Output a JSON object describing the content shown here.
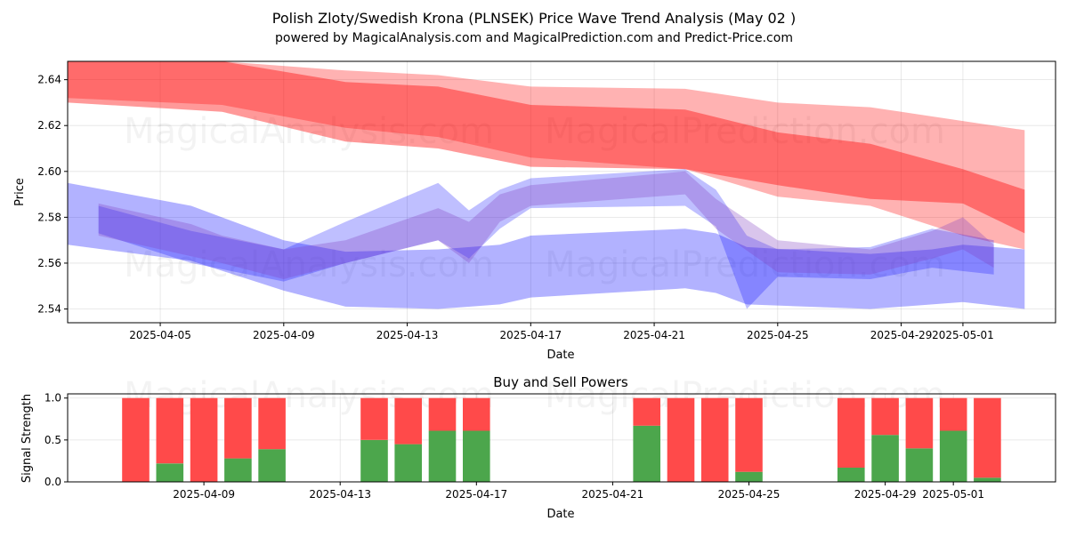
{
  "header": {
    "title": "Polish Zloty/Swedish Krona (PLNSEK) Price Wave Trend Analysis (May 02 )",
    "subtitle": "powered by MagicalAnalysis.com and MagicalPrediction.com and Predict-Price.com"
  },
  "watermarks": [
    "MagicalAnalysis.com",
    "MagicalPrediction.com"
  ],
  "chart_data": [
    {
      "type": "area",
      "xlabel": "Date",
      "ylabel": "Price",
      "xlim": [
        "2025-04-02",
        "2025-05-04"
      ],
      "ylim": [
        2.534,
        2.648
      ],
      "x_ticks": [
        "2025-04-05",
        "2025-04-09",
        "2025-04-13",
        "2025-04-17",
        "2025-04-21",
        "2025-04-25",
        "2025-04-29",
        "2025-05-01"
      ],
      "y_ticks": [
        "2.54",
        "2.56",
        "2.58",
        "2.60",
        "2.62",
        "2.64"
      ],
      "grid": true,
      "colors": {
        "red_band": "#ff0000",
        "blue_band": "#0000ff",
        "purple_band": "#8040c0"
      },
      "bands": [
        {
          "color": "red",
          "opacity": 0.3,
          "x": [
            "2025-04-02",
            "2025-04-07",
            "2025-04-11",
            "2025-04-14",
            "2025-04-17",
            "2025-04-22",
            "2025-04-25",
            "2025-04-28",
            "2025-05-01",
            "2025-05-03"
          ],
          "upper": [
            2.648,
            2.648,
            2.644,
            2.642,
            2.637,
            2.636,
            2.63,
            2.628,
            2.622,
            2.618
          ],
          "lower": [
            2.632,
            2.629,
            2.619,
            2.615,
            2.606,
            2.601,
            2.589,
            2.585,
            2.572,
            2.566
          ]
        },
        {
          "color": "red",
          "opacity": 0.4,
          "x": [
            "2025-04-02",
            "2025-04-07",
            "2025-04-11",
            "2025-04-14",
            "2025-04-17",
            "2025-04-22",
            "2025-04-25",
            "2025-04-28",
            "2025-05-01",
            "2025-05-03"
          ],
          "upper": [
            2.648,
            2.648,
            2.639,
            2.637,
            2.629,
            2.627,
            2.617,
            2.612,
            2.601,
            2.592
          ],
          "lower": [
            2.63,
            2.626,
            2.613,
            2.61,
            2.602,
            2.601,
            2.594,
            2.588,
            2.586,
            2.573
          ]
        },
        {
          "color": "blue",
          "opacity": 0.3,
          "x": [
            "2025-04-02",
            "2025-04-06",
            "2025-04-09",
            "2025-04-11",
            "2025-04-14",
            "2025-04-16",
            "2025-04-17",
            "2025-04-22",
            "2025-04-23",
            "2025-04-24",
            "2025-04-28",
            "2025-04-30",
            "2025-05-01",
            "2025-05-03"
          ],
          "upper": [
            2.595,
            2.585,
            2.57,
            2.565,
            2.566,
            2.568,
            2.572,
            2.575,
            2.573,
            2.567,
            2.564,
            2.566,
            2.568,
            2.566
          ],
          "lower": [
            2.568,
            2.561,
            2.548,
            2.541,
            2.54,
            2.542,
            2.545,
            2.549,
            2.547,
            2.542,
            2.54,
            2.542,
            2.543,
            2.54
          ]
        },
        {
          "color": "blue",
          "opacity": 0.25,
          "x": [
            "2025-04-03",
            "2025-04-06",
            "2025-04-09",
            "2025-04-11",
            "2025-04-14",
            "2025-04-15",
            "2025-04-16",
            "2025-04-17",
            "2025-04-22",
            "2025-04-23",
            "2025-04-24",
            "2025-04-25",
            "2025-04-28",
            "2025-04-30",
            "2025-05-02"
          ],
          "upper": [
            2.585,
            2.574,
            2.566,
            2.578,
            2.595,
            2.583,
            2.592,
            2.597,
            2.601,
            2.592,
            2.572,
            2.566,
            2.567,
            2.575,
            2.57
          ],
          "lower": [
            2.573,
            2.56,
            2.552,
            2.56,
            2.57,
            2.562,
            2.575,
            2.584,
            2.585,
            2.576,
            2.54,
            2.554,
            2.553,
            2.558,
            2.555
          ]
        },
        {
          "color": "purple",
          "opacity": 0.3,
          "x": [
            "2025-04-03",
            "2025-04-06",
            "2025-04-07",
            "2025-04-09",
            "2025-04-11",
            "2025-04-14",
            "2025-04-15",
            "2025-04-16",
            "2025-04-17",
            "2025-04-22",
            "2025-04-23",
            "2025-04-25",
            "2025-04-28",
            "2025-04-30",
            "2025-05-01",
            "2025-05-02"
          ],
          "upper": [
            2.586,
            2.577,
            2.572,
            2.566,
            2.57,
            2.584,
            2.578,
            2.59,
            2.594,
            2.6,
            2.588,
            2.57,
            2.566,
            2.574,
            2.58,
            2.568
          ],
          "lower": [
            2.572,
            2.563,
            2.56,
            2.553,
            2.56,
            2.57,
            2.56,
            2.578,
            2.585,
            2.59,
            2.575,
            2.556,
            2.555,
            2.562,
            2.566,
            2.558
          ]
        }
      ]
    },
    {
      "type": "bar",
      "title": "Buy and Sell Powers",
      "xlabel": "Date",
      "ylabel": "Signal Strength",
      "xlim": [
        "2025-04-05",
        "2025-05-04"
      ],
      "ylim": [
        0,
        1.05
      ],
      "x_ticks": [
        "2025-04-09",
        "2025-04-13",
        "2025-04-17",
        "2025-04-21",
        "2025-04-25",
        "2025-04-29",
        "2025-05-01"
      ],
      "y_ticks": [
        "0.0",
        "0.5",
        "1.0"
      ],
      "grid": true,
      "colors": {
        "buy": "#4ca64c",
        "sell": "#ff4a4a"
      },
      "categories": [
        "2025-04-07",
        "2025-04-08",
        "2025-04-09",
        "2025-04-10",
        "2025-04-11",
        "2025-04-14",
        "2025-04-15",
        "2025-04-16",
        "2025-04-17",
        "2025-04-22",
        "2025-04-23",
        "2025-04-24",
        "2025-04-25",
        "2025-04-28",
        "2025-04-29",
        "2025-04-30",
        "2025-05-01",
        "2025-05-02"
      ],
      "series": [
        {
          "values": [
            0.0,
            0.22,
            0.0,
            0.28,
            0.39,
            0.5,
            0.45,
            0.61,
            0.61,
            0.67,
            0.0,
            0.0,
            0.12,
            0.17,
            0.56,
            0.4,
            0.61,
            0.05
          ]
        },
        {
          "values": [
            1.0,
            0.78,
            1.0,
            0.72,
            0.61,
            0.5,
            0.55,
            0.39,
            0.39,
            0.33,
            1.0,
            1.0,
            0.88,
            0.83,
            0.44,
            0.6,
            0.39,
            0.95
          ]
        }
      ]
    }
  ]
}
